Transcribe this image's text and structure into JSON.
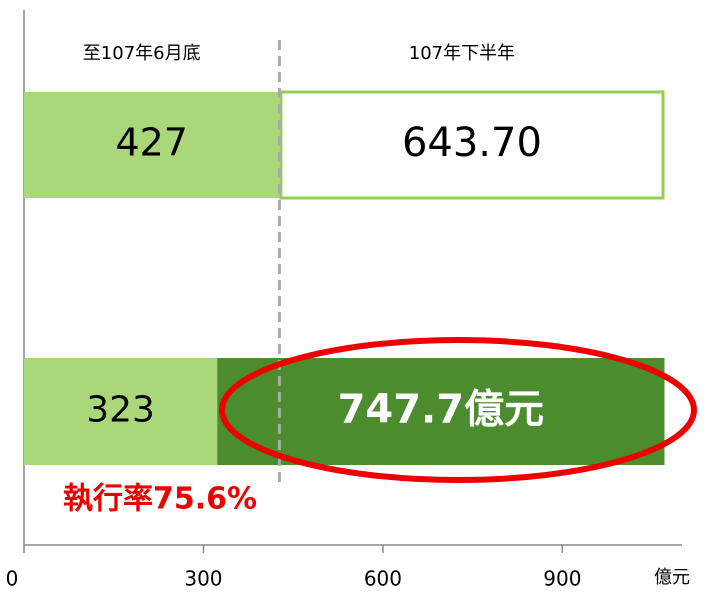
{
  "chart_data": {
    "type": "stacked_barh",
    "categories": [
      null,
      null
    ],
    "series": [
      {
        "name": "至107年6月底",
        "color": "#a9d77a",
        "values": [
          427,
          323
        ]
      },
      {
        "name": "107年下半年",
        "colors": [
          "#ffffff",
          "#4a8c2e"
        ],
        "border": "#92d050",
        "values": [
          643.7,
          747.7
        ],
        "value_labels": [
          "643.70",
          "747.7億元"
        ]
      }
    ],
    "xlabel": "億元",
    "xlim": [
      0,
      1100
    ],
    "xticks": [
      0,
      300,
      600,
      900
    ],
    "reference_line": 427,
    "annotation": "執行率75.6%"
  }
}
